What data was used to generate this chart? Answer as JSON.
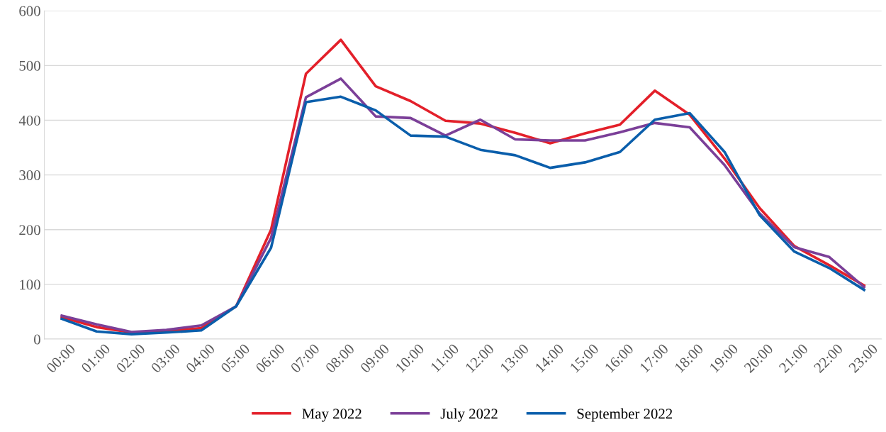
{
  "chart_data": {
    "type": "line",
    "categories": [
      "00:00",
      "01:00",
      "02:00",
      "03:00",
      "04:00",
      "05:00",
      "06:00",
      "07:00",
      "08:00",
      "09:00",
      "10:00",
      "11:00",
      "12:00",
      "13:00",
      "14:00",
      "15:00",
      "16:00",
      "17:00",
      "18:00",
      "19:00",
      "20:00",
      "21:00",
      "22:00",
      "23:00"
    ],
    "series": [
      {
        "name": "May 2022",
        "color": "#e3202a",
        "values": [
          40,
          22,
          12,
          15,
          20,
          60,
          200,
          485,
          547,
          462,
          435,
          399,
          394,
          377,
          358,
          376,
          392,
          454,
          410,
          330,
          240,
          170,
          135,
          98
        ]
      },
      {
        "name": "July 2022",
        "color": "#7b3f98",
        "values": [
          43,
          27,
          13,
          17,
          25,
          60,
          185,
          442,
          476,
          407,
          404,
          372,
          401,
          365,
          363,
          363,
          378,
          395,
          387,
          318,
          230,
          168,
          150,
          95
        ]
      },
      {
        "name": "September 2022",
        "color": "#0a5eab",
        "values": [
          37,
          14,
          9,
          12,
          16,
          60,
          167,
          433,
          443,
          418,
          372,
          370,
          346,
          336,
          313,
          323,
          342,
          401,
          413,
          342,
          227,
          160,
          130,
          90
        ]
      }
    ],
    "ylim": [
      0,
      600
    ],
    "yticks": [
      0,
      100,
      200,
      300,
      400,
      500,
      600
    ],
    "grid": "y",
    "legend": "bottom",
    "marker": "none",
    "line_style": "solid"
  }
}
